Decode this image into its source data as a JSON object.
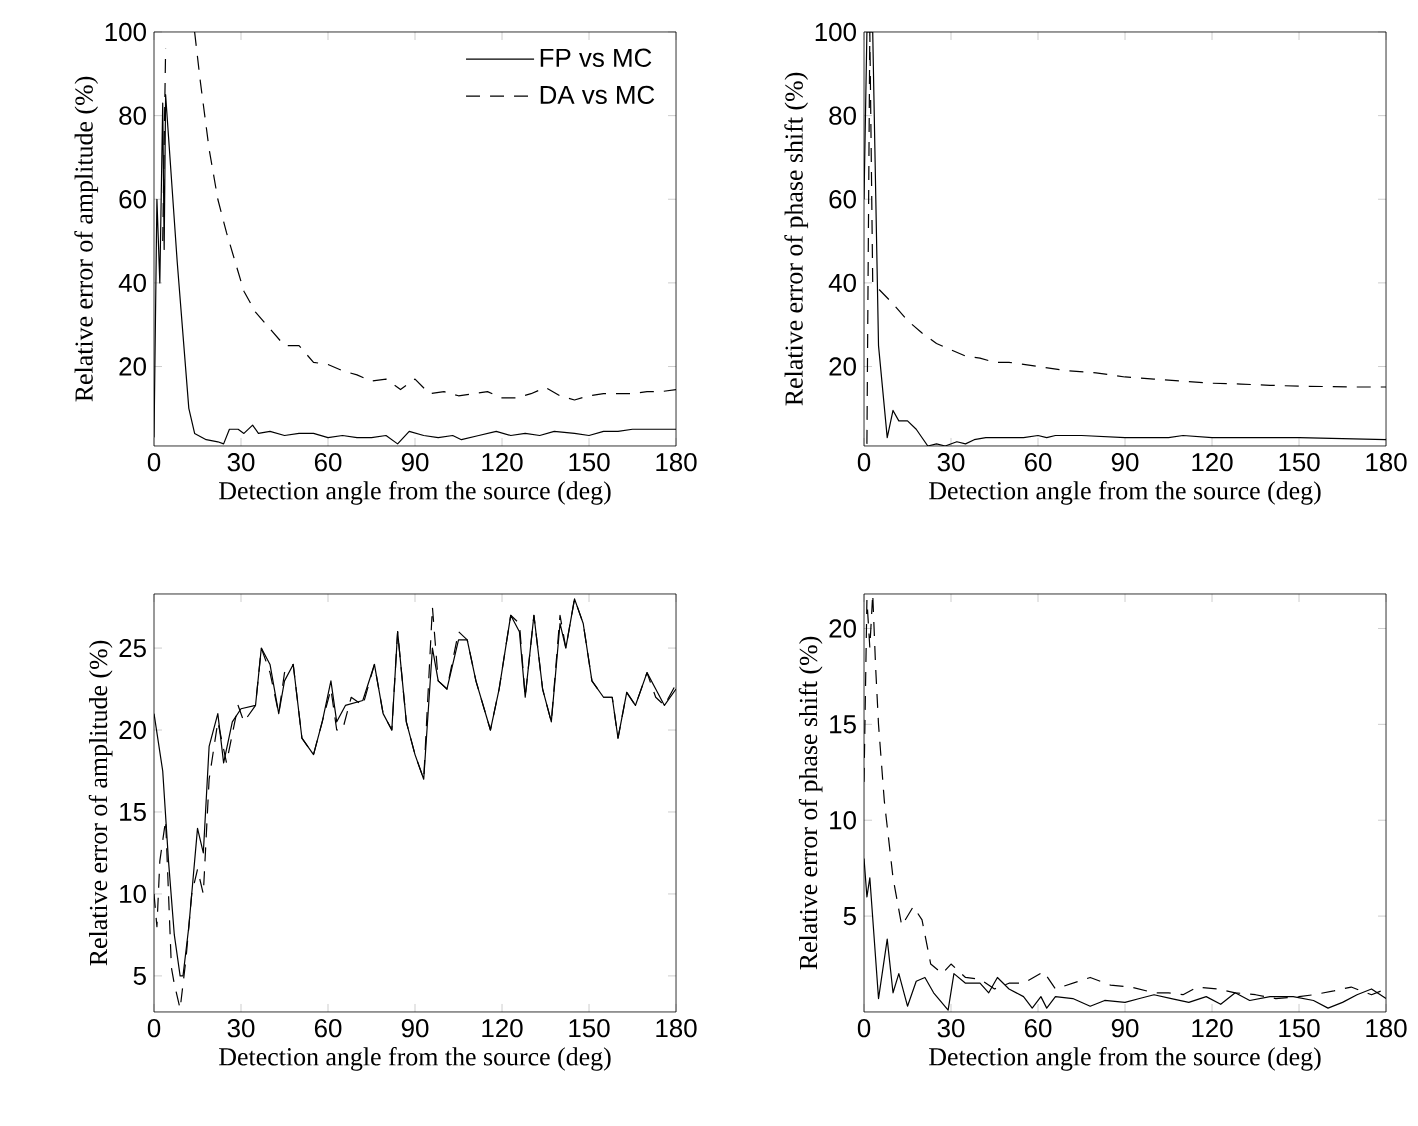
{
  "chart_data": [
    {
      "type": "line",
      "xlabel": "Detection angle from the source (deg)",
      "ylabel": "Relative error of amplitude (%)",
      "xlim": [
        0,
        180
      ],
      "ylim": [
        1,
        100
      ],
      "xticks": [
        0,
        30,
        60,
        90,
        120,
        150,
        180
      ],
      "yticks": [
        20,
        40,
        60,
        80,
        100
      ],
      "legend": "top right",
      "series": [
        {
          "name": "FP vs MC",
          "color": "#000000",
          "line_style": "solid",
          "x": [
            0,
            1,
            2,
            3,
            3.5,
            4,
            5,
            8,
            12,
            14,
            18,
            22,
            24,
            26,
            29,
            31,
            34,
            36,
            40,
            45,
            50,
            55,
            60,
            65,
            70,
            75,
            80,
            84,
            88,
            93,
            98,
            103,
            106,
            112,
            118,
            123,
            128,
            133,
            138,
            145,
            150,
            155,
            160,
            165,
            170,
            175,
            180
          ],
          "values": [
            3,
            60,
            40,
            83,
            48,
            85,
            75,
            45,
            10,
            4,
            2.5,
            2,
            1.5,
            5,
            5,
            4,
            6,
            4,
            4.5,
            3.5,
            4,
            4,
            3,
            3.5,
            3,
            3,
            3.5,
            1.5,
            4.5,
            3.5,
            3,
            3.5,
            2.5,
            3.5,
            4.5,
            3.5,
            4,
            3.5,
            4.5,
            4,
            3.5,
            4.5,
            4.5,
            5,
            5,
            5,
            5
          ]
        },
        {
          "name": "DA vs MC",
          "color": "#000000",
          "line_style": "dashed",
          "x": [
            3,
            4,
            5,
            14,
            16,
            19,
            22,
            25,
            28,
            31,
            35,
            40,
            45,
            50,
            55,
            60,
            65,
            70,
            75,
            80,
            85,
            90,
            95,
            100,
            105,
            110,
            115,
            120,
            125,
            130,
            135,
            140,
            145,
            150,
            155,
            160,
            165,
            170,
            175,
            180
          ],
          "values": [
            50,
            96,
            null,
            100,
            88,
            72,
            60,
            52,
            45,
            38,
            33,
            29,
            25,
            25,
            21,
            20.5,
            19,
            18,
            16.5,
            17,
            14.5,
            17,
            13.5,
            14,
            13,
            13.5,
            14,
            12.5,
            12.5,
            13.5,
            15,
            13,
            12,
            13,
            13.5,
            13.5,
            13.5,
            14,
            14,
            14.5
          ]
        }
      ]
    },
    {
      "type": "line",
      "xlabel": "Detection angle from the source (deg)",
      "ylabel": "Relative error of phase shift (%)",
      "xlim": [
        0,
        180
      ],
      "ylim": [
        1,
        100
      ],
      "xticks": [
        0,
        30,
        60,
        90,
        120,
        150,
        180
      ],
      "yticks": [
        20,
        40,
        60,
        80,
        100
      ],
      "series": [
        {
          "color": "#000000",
          "line_style": "solid",
          "x": [
            0,
            1,
            3,
            5,
            8,
            10,
            12,
            15,
            18,
            22,
            25,
            28,
            32,
            35,
            38,
            42,
            50,
            55,
            60,
            63,
            66,
            75,
            90,
            105,
            110,
            120,
            150,
            180
          ],
          "values": [
            60,
            100,
            100,
            25,
            3,
            9.5,
            7,
            7,
            5,
            1,
            1.5,
            1,
            2,
            1.5,
            2.5,
            3,
            3,
            3,
            3.5,
            3,
            3.5,
            3.5,
            3,
            3,
            3.5,
            3,
            3,
            2.5
          ]
        },
        {
          "color": "#000000",
          "line_style": "dashed",
          "x": [
            1,
            2,
            3,
            10,
            15,
            20,
            25,
            30,
            35,
            40,
            45,
            50,
            60,
            70,
            80,
            90,
            100,
            110,
            120,
            130,
            140,
            150,
            160,
            170,
            180
          ],
          "values": [
            1.5,
            100,
            40,
            35,
            31,
            28,
            25.5,
            24,
            22.5,
            22,
            21,
            21,
            20,
            19,
            18.5,
            17.5,
            17,
            16.5,
            16,
            15.8,
            15.5,
            15.3,
            15.2,
            15.1,
            15.1
          ]
        }
      ]
    },
    {
      "type": "line",
      "xlabel": "Detection angle from the source (deg)",
      "ylabel": "Relative error of amplitude (%)",
      "xlim": [
        0,
        180
      ],
      "ylim": [
        2.8,
        28.3
      ],
      "xticks": [
        0,
        30,
        60,
        90,
        120,
        150,
        180
      ],
      "yticks": [
        5,
        10,
        15,
        20,
        25
      ],
      "series": [
        {
          "color": "#000000",
          "line_style": "solid",
          "x": [
            0,
            3,
            5,
            7,
            9,
            10,
            12,
            15,
            17,
            19,
            22,
            24,
            27,
            30,
            35,
            37,
            40,
            43,
            45,
            48,
            51,
            55,
            58,
            61,
            63,
            66,
            72,
            76,
            79,
            82,
            84,
            87,
            90,
            93,
            96,
            98,
            101,
            105,
            108,
            111,
            116,
            119,
            123,
            126,
            128,
            131,
            134,
            137,
            140,
            142,
            145,
            148,
            151,
            155,
            158,
            160,
            163,
            166,
            170,
            173,
            176,
            180
          ],
          "values": [
            21,
            17.5,
            12,
            7.5,
            5,
            5,
            8,
            14,
            12.5,
            19,
            21,
            18,
            20.5,
            21.3,
            21.5,
            25,
            24,
            21,
            23,
            24,
            19.5,
            18.5,
            20.5,
            23,
            20.5,
            21.5,
            21.8,
            24,
            21,
            20,
            26,
            20.5,
            18.5,
            17,
            25,
            23,
            22.5,
            25.5,
            25.5,
            23,
            20,
            22.5,
            27,
            26,
            22,
            27,
            22.5,
            20.5,
            26.5,
            25,
            28,
            26.5,
            23,
            22,
            22,
            19.5,
            22.3,
            21.5,
            23.5,
            22.5,
            21.5,
            22.5
          ]
        },
        {
          "color": "#000000",
          "line_style": "dashed",
          "x": [
            0,
            1,
            2,
            4,
            6,
            7,
            9,
            11,
            13,
            15,
            17,
            19,
            22,
            25,
            29,
            31,
            35,
            37,
            40,
            43,
            45,
            48,
            51,
            55,
            58,
            61,
            63,
            65,
            68,
            72,
            76,
            79,
            82,
            84,
            87,
            90,
            93,
            96,
            98,
            101,
            105,
            108,
            111,
            116,
            119,
            123,
            126,
            128,
            131,
            134,
            137,
            140,
            142,
            145,
            148,
            151,
            155,
            158,
            160,
            163,
            166,
            170,
            173,
            176,
            180
          ],
          "values": [
            10,
            8,
            12,
            14.5,
            5.5,
            4.5,
            3,
            6,
            10,
            11.5,
            10,
            17,
            20.5,
            18,
            21.5,
            20.5,
            21.5,
            25,
            23.5,
            21,
            23.5,
            24,
            19.5,
            18.5,
            20.5,
            22.5,
            20,
            20,
            22,
            21.5,
            24,
            21,
            20,
            26,
            20.5,
            18.5,
            17,
            27.5,
            23,
            22.5,
            26,
            25.5,
            23,
            20,
            22.5,
            27,
            26.5,
            22,
            27,
            22.5,
            20.5,
            27,
            25,
            28,
            26.5,
            23,
            22,
            22,
            19.5,
            22.3,
            21.5,
            23.5,
            22,
            21.5,
            22.8
          ]
        }
      ]
    },
    {
      "type": "line",
      "xlabel": "Detection angle from the source (deg)",
      "ylabel": "Relative error of phase shift (%)",
      "xlim": [
        0,
        180
      ],
      "ylim": [
        0,
        21.8
      ],
      "xticks": [
        0,
        30,
        60,
        90,
        120,
        150,
        180
      ],
      "yticks": [
        5,
        10,
        15,
        20
      ],
      "series": [
        {
          "color": "#000000",
          "line_style": "solid",
          "x": [
            0,
            1,
            2,
            5,
            8,
            10,
            12,
            15,
            18,
            21,
            24,
            29,
            31,
            35,
            40,
            43,
            46,
            50,
            55,
            58,
            61,
            63,
            66,
            72,
            78,
            83,
            90,
            95,
            100,
            106,
            112,
            118,
            123,
            128,
            133,
            140,
            148,
            155,
            160,
            165,
            170,
            175,
            180
          ],
          "values": [
            8,
            6,
            7,
            0.7,
            3.8,
            1,
            2,
            0.3,
            1.6,
            1.8,
            1,
            0.1,
            2,
            1.5,
            1.5,
            1,
            1.8,
            1.2,
            0.8,
            0.2,
            0.8,
            0.2,
            0.8,
            0.7,
            0.3,
            0.6,
            0.5,
            0.7,
            0.9,
            0.7,
            0.5,
            0.8,
            0.4,
            1,
            0.6,
            0.8,
            0.8,
            0.6,
            0.2,
            0.5,
            0.9,
            1.2,
            0.7
          ]
        },
        {
          "color": "#000000",
          "line_style": "dashed",
          "x": [
            0,
            1,
            2,
            3,
            4,
            5,
            7,
            10,
            13,
            17,
            20,
            23,
            27,
            30,
            35,
            40,
            45,
            50,
            55,
            62,
            66,
            72,
            78,
            85,
            92,
            100,
            105,
            110,
            115,
            122,
            128,
            135,
            142,
            150,
            155,
            162,
            168,
            175,
            180
          ],
          "values": [
            12,
            21.5,
            19,
            21.8,
            18,
            15,
            11,
            7,
            4.5,
            5.5,
            4.8,
            2.5,
            2,
            2.5,
            1.8,
            1.7,
            1.2,
            1.5,
            1.5,
            2.1,
            1.2,
            1.5,
            1.8,
            1.4,
            1.3,
            1,
            1,
            0.9,
            1.3,
            1.2,
            1,
            0.9,
            0.7,
            0.8,
            0.9,
            1.1,
            1.3,
            0.9,
            1.2
          ]
        }
      ]
    }
  ]
}
